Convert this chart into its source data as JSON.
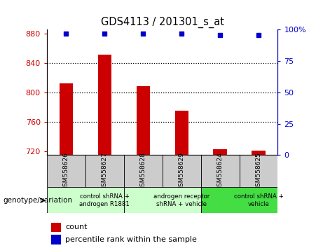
{
  "title": "GDS4113 / 201301_s_at",
  "samples": [
    "GSM558626",
    "GSM558627",
    "GSM558628",
    "GSM558629",
    "GSM558624",
    "GSM558625"
  ],
  "counts": [
    812,
    851,
    808,
    775,
    723,
    721
  ],
  "percentile_ranks": [
    97,
    97,
    97,
    97,
    96,
    96
  ],
  "ylim_left": [
    715,
    885
  ],
  "ylim_right": [
    0,
    100
  ],
  "yticks_left": [
    720,
    760,
    800,
    840,
    880
  ],
  "yticks_right": [
    0,
    25,
    50,
    75,
    100
  ],
  "bar_color": "#cc0000",
  "dot_color": "#0000cc",
  "groups": [
    {
      "label": "control shRNA +\nandrogen R1881",
      "start": 0,
      "end": 2,
      "color": "#ccffcc"
    },
    {
      "label": "androgen receptor\nshRNA + vehicle",
      "start": 2,
      "end": 4,
      "color": "#ccffcc"
    },
    {
      "label": "control shRNA +\nvehicle",
      "start": 4,
      "end": 6,
      "color": "#44dd44"
    }
  ],
  "sample_box_color": "#cccccc",
  "legend_count_color": "#cc0000",
  "legend_pct_color": "#0000cc",
  "genotype_label": "genotype/variation",
  "bar_bottom": 715
}
